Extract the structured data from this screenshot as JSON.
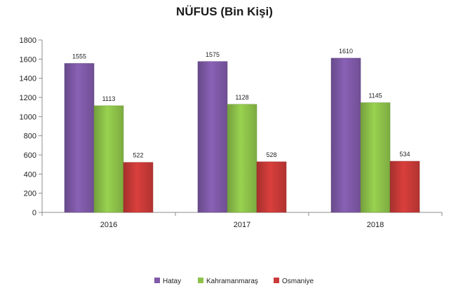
{
  "chart_data": {
    "type": "bar",
    "title": "NÜFUS (Bin Kişi)",
    "xlabel": "",
    "ylabel": "",
    "categories": [
      "2016",
      "2017",
      "2018"
    ],
    "series": [
      {
        "name": "Hatay",
        "values": [
          1555,
          1575,
          1610
        ],
        "color": "#7f5aa8"
      },
      {
        "name": "Kahramanmaraş",
        "values": [
          1113,
          1128,
          1145
        ],
        "color": "#8ec24a"
      },
      {
        "name": "Osmaniye",
        "values": [
          522,
          528,
          534
        ],
        "color": "#c93a38"
      }
    ],
    "ylim": [
      0,
      1800
    ],
    "yticks": [
      0,
      200,
      400,
      600,
      800,
      1000,
      1200,
      1400,
      1600,
      1800
    ],
    "grid": false,
    "legend_position": "bottom"
  }
}
